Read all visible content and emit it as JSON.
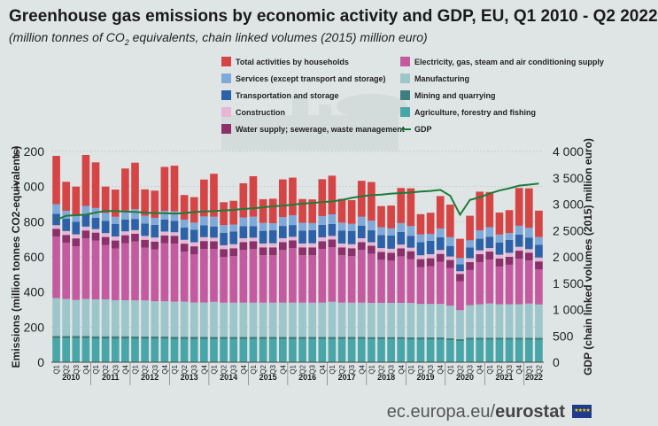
{
  "title": "Greenhouse gas emissions by economic activity and GDP, EU, Q1 2010 - Q2 2022",
  "subtitle_pre": "(million tonnes of CO",
  "subtitle_sub": "2",
  "subtitle_post": " equivalents, chain linked volumes (2015) million euro)",
  "footer": {
    "site_pre": "ec.europa.eu/",
    "site_bold": "eurostat"
  },
  "colors": {
    "households": "#d64545",
    "electricity": "#c45aa0",
    "services": "#7fa9d8",
    "manufacturing": "#9cc6c9",
    "transport": "#2e62a8",
    "mining": "#3d7f7f",
    "construction": "#e6b6d4",
    "agriculture": "#48a6a8",
    "water": "#8c2f6a",
    "gdp": "#1f7a3a"
  },
  "chart_data": {
    "type": "bar",
    "stacked": true,
    "title": "Greenhouse gas emissions by economic activity and GDP, EU, Q1 2010 - Q2 2022",
    "ylabel_left": "Emissions (million tonnes CO2-equivalents)",
    "ylabel_right": "GDP (chain linked volumes (2015) million euro)",
    "ylim_left": [
      0,
      1200
    ],
    "yticks_left": [
      "0",
      "200",
      "400",
      "600",
      "800",
      "1 000",
      "1 200"
    ],
    "ylim_right": [
      0,
      4000
    ],
    "yticks_right": [
      "0",
      "500",
      "1 000",
      "1 500",
      "2 000",
      "2 500",
      "3 000",
      "3 500",
      "4 000"
    ],
    "quarter_labels": [
      "Q1",
      "Q2",
      "Q3",
      "Q4"
    ],
    "years": [
      "2010",
      "2011",
      "2012",
      "2013",
      "2014",
      "2015",
      "2016",
      "2017",
      "2018",
      "2019",
      "2020",
      "2021",
      "2022"
    ],
    "legend": [
      {
        "key": "households",
        "label": "Total activities by households"
      },
      {
        "key": "electricity",
        "label": "Electricity, gas, steam and air conditioning supply"
      },
      {
        "key": "services",
        "label": "Services (except transport and storage)"
      },
      {
        "key": "manufacturing",
        "label": "Manufacturing"
      },
      {
        "key": "transport",
        "label": "Transportation and storage"
      },
      {
        "key": "mining",
        "label": "Mining and quarrying"
      },
      {
        "key": "construction",
        "label": "Construction"
      },
      {
        "key": "agriculture",
        "label": "Agriculture, forestry and fishing"
      },
      {
        "key": "water",
        "label": "Water supply; sewerage, waste management"
      },
      {
        "key": "gdp",
        "label": "GDP"
      }
    ],
    "stack_order": [
      "agriculture",
      "mining",
      "manufacturing",
      "electricity",
      "water",
      "construction",
      "transport",
      "services",
      "households"
    ],
    "series": {
      "agriculture": [
        135,
        135,
        135,
        135,
        133,
        133,
        133,
        133,
        132,
        132,
        132,
        132,
        131,
        131,
        131,
        131,
        130,
        130,
        130,
        130,
        130,
        130,
        130,
        130,
        130,
        130,
        130,
        130,
        130,
        130,
        130,
        130,
        130,
        130,
        130,
        130,
        129,
        129,
        129,
        129,
        125,
        120,
        128,
        128,
        128,
        128,
        128,
        128,
        127,
        127
      ],
      "mining": [
        15,
        15,
        15,
        15,
        15,
        15,
        15,
        15,
        15,
        15,
        15,
        15,
        14,
        14,
        14,
        14,
        14,
        14,
        14,
        14,
        14,
        14,
        14,
        14,
        14,
        14,
        14,
        14,
        14,
        14,
        14,
        14,
        13,
        13,
        13,
        13,
        13,
        13,
        13,
        13,
        12,
        11,
        12,
        12,
        12,
        12,
        12,
        12,
        12,
        12
      ],
      "manufacturing": [
        215,
        210,
        205,
        210,
        210,
        210,
        205,
        205,
        205,
        205,
        200,
        200,
        200,
        200,
        195,
        195,
        200,
        195,
        195,
        195,
        195,
        195,
        195,
        195,
        195,
        195,
        195,
        195,
        200,
        195,
        195,
        195,
        195,
        195,
        195,
        195,
        195,
        190,
        190,
        190,
        185,
        165,
        185,
        190,
        195,
        190,
        190,
        190,
        195,
        190
      ],
      "electricity": [
        350,
        320,
        305,
        345,
        335,
        310,
        295,
        325,
        335,
        300,
        295,
        330,
        330,
        285,
        275,
        305,
        300,
        260,
        265,
        300,
        305,
        270,
        270,
        300,
        310,
        270,
        270,
        305,
        310,
        270,
        265,
        300,
        280,
        245,
        240,
        265,
        250,
        210,
        215,
        240,
        215,
        165,
        200,
        240,
        250,
        215,
        225,
        260,
        245,
        200
      ],
      "water": [
        45,
        45,
        45,
        45,
        45,
        45,
        45,
        45,
        45,
        45,
        45,
        45,
        45,
        45,
        45,
        45,
        45,
        45,
        45,
        45,
        45,
        45,
        45,
        45,
        45,
        45,
        45,
        45,
        45,
        45,
        45,
        45,
        45,
        45,
        45,
        45,
        45,
        45,
        45,
        45,
        45,
        42,
        45,
        45,
        45,
        45,
        45,
        45,
        45,
        45
      ],
      "construction": [
        20,
        22,
        23,
        22,
        20,
        22,
        23,
        22,
        20,
        22,
        23,
        22,
        20,
        22,
        23,
        22,
        20,
        22,
        23,
        22,
        20,
        22,
        23,
        22,
        20,
        22,
        23,
        22,
        20,
        22,
        23,
        22,
        20,
        22,
        23,
        22,
        20,
        22,
        23,
        22,
        20,
        15,
        22,
        22,
        20,
        22,
        23,
        22,
        20,
        22
      ],
      "transport": [
        65,
        70,
        72,
        68,
        65,
        70,
        72,
        68,
        64,
        70,
        72,
        68,
        64,
        70,
        72,
        68,
        64,
        70,
        72,
        68,
        65,
        72,
        74,
        70,
        67,
        73,
        75,
        71,
        68,
        74,
        76,
        72,
        68,
        74,
        76,
        72,
        68,
        74,
        76,
        72,
        60,
        40,
        62,
        66,
        64,
        70,
        73,
        70,
        66,
        72
      ],
      "services": [
        55,
        45,
        40,
        50,
        55,
        45,
        40,
        50,
        55,
        45,
        40,
        50,
        55,
        45,
        40,
        50,
        55,
        45,
        40,
        50,
        55,
        45,
        40,
        50,
        55,
        45,
        40,
        50,
        55,
        45,
        40,
        50,
        55,
        45,
        40,
        50,
        55,
        45,
        40,
        50,
        50,
        35,
        40,
        48,
        55,
        45,
        40,
        50,
        55,
        45
      ],
      "households": [
        275,
        165,
        160,
        290,
        260,
        150,
        155,
        240,
        265,
        150,
        155,
        250,
        260,
        140,
        145,
        210,
        245,
        130,
        135,
        195,
        230,
        135,
        140,
        215,
        215,
        135,
        135,
        210,
        220,
        135,
        135,
        205,
        220,
        120,
        130,
        200,
        215,
        115,
        120,
        185,
        185,
        110,
        140,
        220,
        200,
        125,
        130,
        215,
        225,
        150
      ]
    },
    "gdp": [
      2700,
      2780,
      2790,
      2800,
      2840,
      2870,
      2870,
      2860,
      2850,
      2840,
      2830,
      2830,
      2820,
      2830,
      2850,
      2860,
      2870,
      2880,
      2890,
      2910,
      2920,
      2940,
      2960,
      2970,
      2990,
      3010,
      3020,
      3040,
      3050,
      3080,
      3120,
      3150,
      3170,
      3180,
      3200,
      3210,
      3220,
      3240,
      3250,
      3270,
      3160,
      2800,
      3080,
      3130,
      3200,
      3260,
      3300,
      3350,
      3370,
      3390
    ]
  }
}
